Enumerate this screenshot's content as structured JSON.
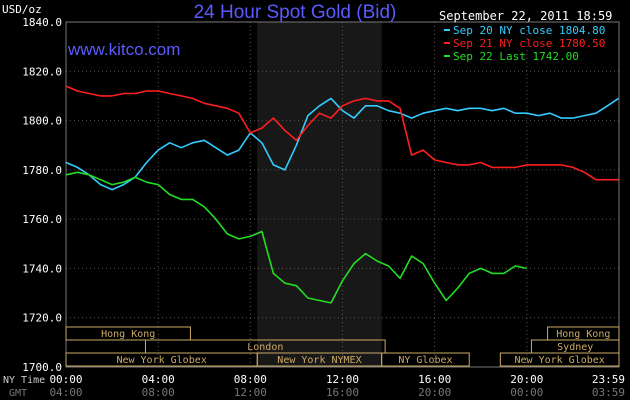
{
  "chart_data": {
    "type": "line",
    "title": "24 Hour Spot Gold (Bid)",
    "watermark": "www.kitco.com",
    "timestamp": "September 22, 2011 18:59",
    "ylabel": "USD/oz",
    "ylim": [
      1700,
      1840
    ],
    "yticks": [
      "1700.0",
      "1720.0",
      "1740.0",
      "1760.0",
      "1780.0",
      "1800.0",
      "1820.0",
      "1840.0"
    ],
    "xlim": [
      0,
      24
    ],
    "xticks_ny": [
      "00:00",
      "04:00",
      "08:00",
      "12:00",
      "16:00",
      "20:00",
      "23:59"
    ],
    "xticks_gmt": [
      "04:00",
      "08:00",
      "12:00",
      "16:00",
      "20:00",
      "00:00",
      "03:59"
    ],
    "xaxis_ny_label": "NY Time",
    "xaxis_gmt_label": "GMT",
    "grid": true,
    "legend_position": "top-right",
    "shaded_region_hours": [
      8.3,
      13.7
    ],
    "series": [
      {
        "name": "Sep 20 NY close 1804.80",
        "color": "#33ccff",
        "x": [
          0,
          0.5,
          1,
          1.5,
          2,
          2.5,
          3,
          3.5,
          4,
          4.5,
          5,
          5.5,
          6,
          6.5,
          7,
          7.5,
          8,
          8.5,
          9,
          9.5,
          10,
          10.5,
          11,
          11.5,
          12,
          12.5,
          13,
          13.5,
          14,
          14.5,
          15,
          15.5,
          16,
          16.5,
          17,
          17.5,
          18,
          18.5,
          19,
          19.5,
          20,
          20.5,
          21,
          21.5,
          22,
          22.5,
          23,
          23.5,
          23.98
        ],
        "y": [
          1783,
          1781,
          1778,
          1774,
          1772,
          1774,
          1777,
          1783,
          1788,
          1791,
          1789,
          1791,
          1792,
          1789,
          1786,
          1788,
          1795,
          1791,
          1782,
          1780,
          1790,
          1802,
          1806,
          1809,
          1804,
          1801,
          1806,
          1806,
          1804,
          1803,
          1801,
          1803,
          1804,
          1805,
          1804,
          1805,
          1805,
          1804,
          1805,
          1803,
          1803,
          1802,
          1803,
          1801,
          1801,
          1802,
          1803,
          1806,
          1809
        ]
      },
      {
        "name": "Sep 21 NY close 1780.50",
        "color": "#ff1e1e",
        "x": [
          0,
          0.5,
          1,
          1.5,
          2,
          2.5,
          3,
          3.5,
          4,
          4.5,
          5,
          5.5,
          6,
          6.5,
          7,
          7.5,
          8,
          8.5,
          9,
          9.5,
          10,
          10.5,
          11,
          11.5,
          12,
          12.5,
          13,
          13.5,
          14,
          14.5,
          15,
          15.5,
          16,
          16.5,
          17,
          17.5,
          18,
          18.5,
          19,
          19.5,
          20,
          20.5,
          21,
          21.5,
          22,
          22.5,
          23,
          23.5,
          23.98
        ],
        "y": [
          1814,
          1812,
          1811,
          1810,
          1810,
          1811,
          1811,
          1812,
          1812,
          1811,
          1810,
          1809,
          1807,
          1806,
          1805,
          1803,
          1795,
          1797,
          1801,
          1796,
          1792,
          1798,
          1803,
          1801,
          1806,
          1808,
          1809,
          1808,
          1808,
          1805,
          1786,
          1788,
          1784,
          1783,
          1782,
          1782,
          1783,
          1781,
          1781,
          1781,
          1782,
          1782,
          1782,
          1782,
          1781,
          1779,
          1776,
          1776,
          1776
        ]
      },
      {
        "name": "Sep 22 Last 1742.00",
        "color": "#22dd22",
        "x": [
          0,
          0.5,
          1,
          1.5,
          2,
          2.5,
          3,
          3.5,
          4,
          4.5,
          5,
          5.5,
          6,
          6.5,
          7,
          7.5,
          8,
          8.5,
          9,
          9.5,
          10,
          10.5,
          11,
          11.5,
          12,
          12.5,
          13,
          13.5,
          14,
          14.5,
          15,
          15.5,
          16,
          16.5,
          17,
          17.5,
          18,
          18.5,
          19,
          19.5,
          20
        ],
        "y": [
          1778,
          1779,
          1778,
          1776,
          1774,
          1775,
          1777,
          1775,
          1774,
          1770,
          1768,
          1768,
          1765,
          1760,
          1754,
          1752,
          1753,
          1755,
          1738,
          1734,
          1733,
          1728,
          1727,
          1726,
          1735,
          1742,
          1746,
          1743,
          1741,
          1736,
          1745,
          1742,
          1734,
          1727,
          1732,
          1738,
          1740,
          1738,
          1738,
          1741,
          1740
        ]
      }
    ],
    "sessions": [
      {
        "label": "Hong Kong",
        "start": 0,
        "end": 5.4,
        "row": 1
      },
      {
        "label": "Hong Kong",
        "start": 20.9,
        "end": 24,
        "row": 1
      },
      {
        "label": "London",
        "start": 3.45,
        "end": 13.85,
        "row": 2
      },
      {
        "label": "Sydney",
        "start": 20.2,
        "end": 24,
        "row": 2
      },
      {
        "label": "New York Globex",
        "start": 0,
        "end": 8.3,
        "row": 3
      },
      {
        "label": "New York NYMEX",
        "start": 8.3,
        "end": 13.7,
        "row": 3
      },
      {
        "label": "NY Globex",
        "start": 13.7,
        "end": 17.5,
        "row": 3
      },
      {
        "label": "New York Globex",
        "start": 18.85,
        "end": 24,
        "row": 3
      }
    ],
    "session_color": "#ccaa66"
  }
}
